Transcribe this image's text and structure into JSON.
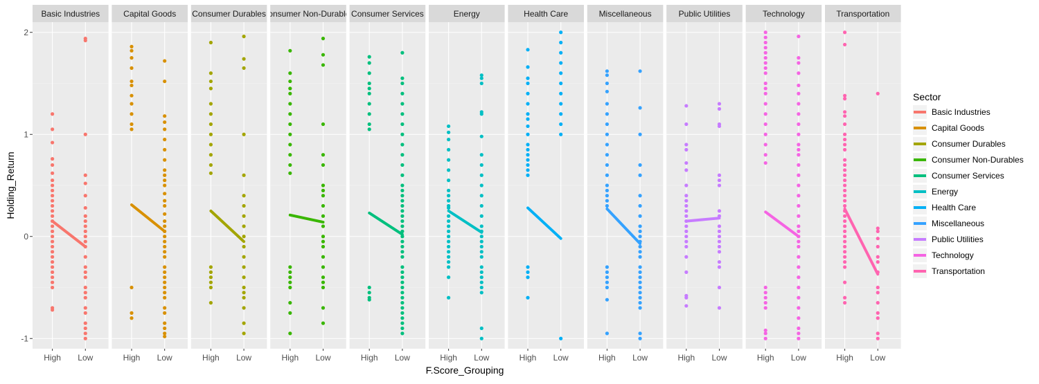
{
  "chart_data": {
    "type": "scatter",
    "xlabel": "F.Score_Grouping",
    "ylabel": "Holding_Return",
    "categories": [
      "High",
      "Low"
    ],
    "ylim": [
      -1.1,
      2.1
    ],
    "yticks": [
      -1,
      0,
      1,
      2
    ],
    "grid": true,
    "legend": {
      "title": "Sector",
      "position": "right"
    },
    "series": [
      {
        "name": "Basic Industries",
        "color": "#F8766D",
        "mean": [
          0.15,
          -0.1
        ],
        "high": [
          1.2,
          1.05,
          0.92,
          0.76,
          0.7,
          0.62,
          0.55,
          0.5,
          0.45,
          0.4,
          0.35,
          0.3,
          0.25,
          0.2,
          0.15,
          0.1,
          0.05,
          0,
          -0.05,
          -0.1,
          -0.15,
          -0.2,
          -0.25,
          -0.3,
          -0.35,
          -0.4,
          -0.45,
          -0.5,
          -0.7,
          -0.72
        ],
        "low": [
          1.94,
          1.92,
          1.0,
          0.6,
          0.52,
          0.4,
          0.28,
          0.2,
          0.15,
          0.1,
          0.05,
          0,
          -0.05,
          -0.1,
          -0.2,
          -0.3,
          -0.35,
          -0.4,
          -0.5,
          -0.55,
          -0.6,
          -0.7,
          -0.75,
          -0.85,
          -0.9,
          -0.95,
          -1.0
        ]
      },
      {
        "name": "Capital Goods",
        "color": "#D89000",
        "mean": [
          0.31,
          0.05
        ],
        "high": [
          1.86,
          1.82,
          1.75,
          1.65,
          1.52,
          1.48,
          1.38,
          1.3,
          1.2,
          1.1,
          1.05,
          -0.5,
          -0.75,
          -0.8
        ],
        "low": [
          1.72,
          1.52,
          1.18,
          1.12,
          1.05,
          0.95,
          0.85,
          0.75,
          0.65,
          0.6,
          0.55,
          0.5,
          0.42,
          0.35,
          0.3,
          0.22,
          0.15,
          0.1,
          0.05,
          0,
          -0.05,
          -0.1,
          -0.15,
          -0.2,
          -0.3,
          -0.35,
          -0.4,
          -0.45,
          -0.5,
          -0.55,
          -0.6,
          -0.7,
          -0.75,
          -0.85,
          -0.9,
          -0.95,
          -0.98
        ]
      },
      {
        "name": "Consumer Durables",
        "color": "#A3A500",
        "mean": [
          0.25,
          -0.05
        ],
        "high": [
          1.9,
          1.6,
          1.52,
          1.45,
          1.3,
          1.2,
          1.1,
          1.0,
          0.9,
          0.8,
          0.7,
          0.62,
          -0.3,
          -0.35,
          -0.4,
          -0.45,
          -0.5,
          -0.65
        ],
        "low": [
          1.96,
          1.74,
          1.65,
          1.0,
          0.6,
          0.4,
          0.3,
          0.2,
          0.1,
          0,
          -0.1,
          -0.2,
          -0.3,
          -0.4,
          -0.5,
          -0.55,
          -0.6,
          -0.7,
          -0.85,
          -0.95
        ]
      },
      {
        "name": "Consumer Non-Durables",
        "color": "#39B600",
        "mean": [
          0.21,
          0.14
        ],
        "high": [
          1.82,
          1.6,
          1.52,
          1.45,
          1.4,
          1.3,
          1.2,
          1.1,
          1.0,
          0.9,
          0.8,
          0.7,
          0.62,
          -0.3,
          -0.35,
          -0.4,
          -0.45,
          -0.5,
          -0.65,
          -0.75,
          -0.95
        ],
        "low": [
          1.94,
          1.78,
          1.68,
          1.1,
          0.8,
          0.7,
          0.5,
          0.45,
          0.4,
          0.3,
          0.2,
          0.1,
          0,
          -0.05,
          -0.1,
          -0.2,
          -0.3,
          -0.4,
          -0.45,
          -0.5,
          -0.7,
          -0.85
        ]
      },
      {
        "name": "Consumer Services",
        "color": "#00BF7D",
        "mean": [
          0.23,
          0.02
        ],
        "high": [
          1.76,
          1.7,
          1.6,
          1.5,
          1.45,
          1.4,
          1.3,
          1.2,
          1.1,
          1.05,
          -0.5,
          -0.55,
          -0.6,
          -0.62
        ],
        "low": [
          1.8,
          1.55,
          1.5,
          1.4,
          1.3,
          1.2,
          1.1,
          1.0,
          0.9,
          0.8,
          0.7,
          0.6,
          0.5,
          0.45,
          0.4,
          0.35,
          0.3,
          0.25,
          0.2,
          0.15,
          0.1,
          0.05,
          0,
          -0.05,
          -0.1,
          -0.15,
          -0.2,
          -0.3,
          -0.35,
          -0.4,
          -0.45,
          -0.5,
          -0.55,
          -0.6,
          -0.65,
          -0.7,
          -0.75,
          -0.8,
          -0.85,
          -0.9,
          -0.95
        ]
      },
      {
        "name": "Energy",
        "color": "#00BFC4",
        "mean": [
          0.25,
          0.04
        ],
        "high": [
          1.08,
          1.02,
          0.95,
          0.85,
          0.75,
          0.65,
          0.55,
          0.45,
          0.4,
          0.35,
          0.3,
          0.28,
          0.2,
          0.15,
          0.1,
          0.05,
          0,
          -0.05,
          -0.1,
          -0.15,
          -0.2,
          -0.25,
          -0.3,
          -0.4,
          -0.6
        ],
        "low": [
          1.58,
          1.55,
          1.5,
          1.22,
          1.2,
          0.98,
          0.8,
          0.7,
          0.6,
          0.5,
          0.4,
          0.3,
          0.2,
          0.1,
          0.05,
          0,
          -0.05,
          -0.1,
          -0.15,
          -0.2,
          -0.3,
          -0.35,
          -0.4,
          -0.45,
          -0.5,
          -0.55,
          -0.9,
          -1.0
        ]
      },
      {
        "name": "Health Care",
        "color": "#00B0F6",
        "mean": [
          0.28,
          -0.02
        ],
        "high": [
          1.83,
          1.66,
          1.55,
          1.5,
          1.4,
          1.3,
          1.2,
          1.15,
          1.08,
          1.0,
          0.9,
          0.85,
          0.8,
          0.75,
          0.7,
          0.65,
          0.6,
          -0.3,
          -0.35,
          -0.4,
          -0.6
        ],
        "low": [
          2.0,
          1.9,
          1.8,
          1.7,
          1.6,
          1.5,
          1.4,
          1.3,
          1.2,
          1.1,
          1.0,
          -1.0
        ]
      },
      {
        "name": "Miscellaneous",
        "color": "#35A2FF",
        "mean": [
          0.27,
          -0.07
        ],
        "high": [
          1.62,
          1.58,
          1.5,
          1.42,
          1.3,
          1.2,
          1.1,
          1.0,
          0.9,
          0.8,
          0.7,
          0.6,
          0.5,
          0.45,
          0.4,
          0.35,
          0.3,
          -0.3,
          -0.35,
          -0.4,
          -0.45,
          -0.5,
          -0.62,
          -0.95
        ],
        "low": [
          1.62,
          1.26,
          1.0,
          0.7,
          0.6,
          0.4,
          0.3,
          0.2,
          0.1,
          0.05,
          0,
          -0.05,
          -0.1,
          -0.15,
          -0.2,
          -0.3,
          -0.35,
          -0.4,
          -0.45,
          -0.5,
          -0.55,
          -0.6,
          -0.65,
          -0.7,
          -0.95,
          -1.0
        ]
      },
      {
        "name": "Public Utilities",
        "color": "#C77CFF",
        "mean": [
          0.15,
          0.18
        ],
        "high": [
          1.28,
          1.1,
          0.9,
          0.85,
          0.72,
          0.65,
          0.5,
          0.4,
          0.35,
          0.3,
          0.25,
          0.2,
          0.15,
          0.1,
          0.05,
          0,
          -0.05,
          -0.1,
          -0.2,
          -0.35,
          -0.58,
          -0.6,
          -0.68
        ],
        "low": [
          1.3,
          1.25,
          1.1,
          1.08,
          0.6,
          0.55,
          0.5,
          0.25,
          0.2,
          0.1,
          0.05,
          0,
          -0.05,
          -0.1,
          -0.15,
          -0.25,
          -0.3,
          -0.5,
          -0.7
        ]
      },
      {
        "name": "Technology",
        "color": "#F564E3",
        "mean": [
          0.24,
          0.0
        ],
        "high": [
          2.0,
          1.95,
          1.9,
          1.85,
          1.8,
          1.75,
          1.7,
          1.65,
          1.6,
          1.5,
          1.45,
          1.4,
          1.3,
          1.2,
          1.1,
          1.0,
          0.9,
          0.8,
          0.72,
          -0.5,
          -0.55,
          -0.6,
          -0.65,
          -0.7,
          -0.92,
          -0.95,
          -1.0
        ],
        "low": [
          1.96,
          1.75,
          1.7,
          1.6,
          1.48,
          1.4,
          1.3,
          1.2,
          1.1,
          1.0,
          0.9,
          0.85,
          0.8,
          0.7,
          0.6,
          0.5,
          0.4,
          0.3,
          0.2,
          0.1,
          0.05,
          0,
          -0.05,
          -0.1,
          -0.2,
          -0.3,
          -0.4,
          -0.5,
          -0.6,
          -0.7,
          -0.8,
          -0.9,
          -0.95,
          -1.0
        ]
      },
      {
        "name": "Transportation",
        "color": "#FF64B0",
        "mean": [
          0.27,
          -0.37
        ],
        "high": [
          2.0,
          1.88,
          1.38,
          1.35,
          1.22,
          1.18,
          1.1,
          1.0,
          0.95,
          0.9,
          0.85,
          0.75,
          0.7,
          0.65,
          0.6,
          0.55,
          0.5,
          0.45,
          0.4,
          0.35,
          0.3,
          0.25,
          0.2,
          0.15,
          0.1,
          0.05,
          0,
          -0.05,
          -0.1,
          -0.15,
          -0.2,
          -0.25,
          -0.3,
          -0.45,
          -0.6,
          -0.65
        ],
        "low": [
          1.4,
          0.08,
          0.05,
          -0.02,
          -0.1,
          -0.2,
          -0.25,
          -0.35,
          -0.5,
          -0.55,
          -0.65,
          -0.75,
          -0.8,
          -0.95,
          -1.0
        ]
      }
    ]
  }
}
